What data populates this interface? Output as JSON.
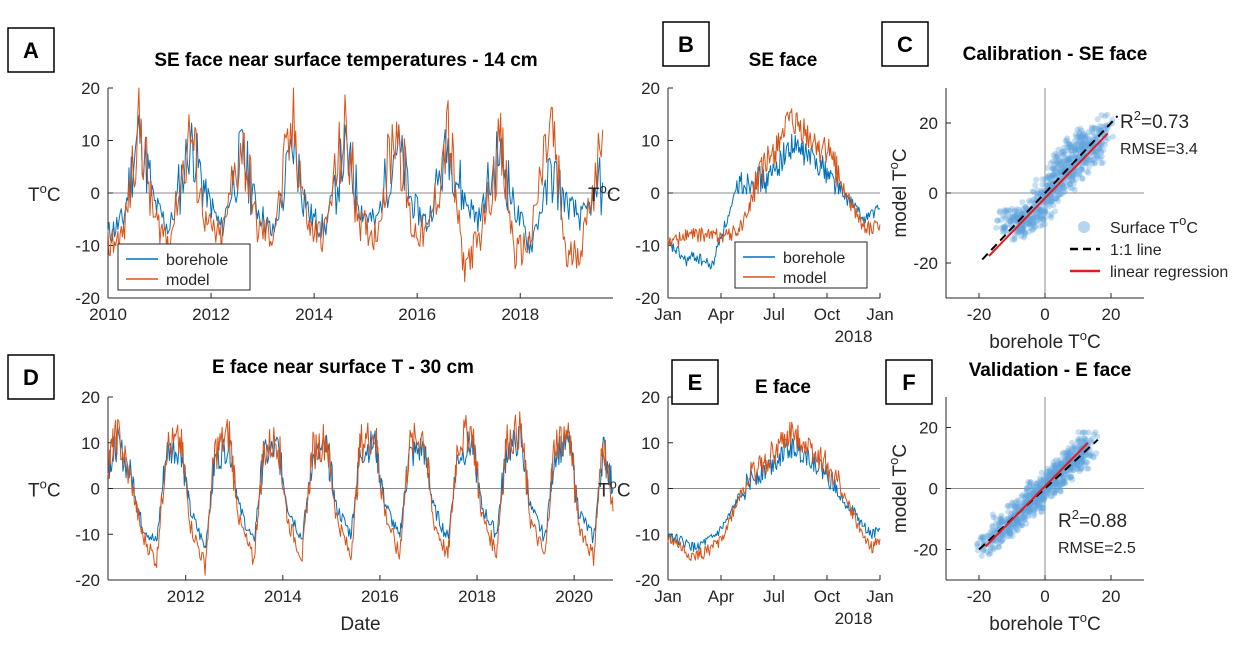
{
  "colors": {
    "borehole": "#0072BD",
    "model": "#D95319",
    "regression": "#E41A1C",
    "one_to_one": "#000000",
    "scatter": "#5FA2DD"
  },
  "panels": [
    {
      "letter": "A",
      "title": "SE face near surface temperatures - 14 cm"
    },
    {
      "letter": "B",
      "title": "SE face"
    },
    {
      "letter": "C",
      "title": "Calibration - SE face"
    },
    {
      "letter": "D",
      "title": "E face near surface T - 30 cm"
    },
    {
      "letter": "E",
      "title": "E face"
    },
    {
      "letter": "F",
      "title": "Validation - E face"
    }
  ],
  "chart_data": [
    {
      "id": "A",
      "type": "line",
      "title": "SE face near surface temperatures - 14 cm",
      "xlabel": "",
      "ylabel": "T°C",
      "xlim": [
        2010,
        2019.8
      ],
      "ylim": [
        -20,
        20
      ],
      "xticks": [
        "2010",
        "2012",
        "2014",
        "2016",
        "2018"
      ],
      "yticks": [
        "20",
        "10",
        "0",
        "-10",
        "-20"
      ],
      "legend": {
        "position": "bottom-left",
        "entries": [
          "borehole",
          "model"
        ]
      },
      "series": [
        {
          "name": "borehole",
          "x": [
            2010.0,
            2010.3,
            2010.6,
            2010.9,
            2011.2,
            2011.6,
            2011.9,
            2012.2,
            2012.6,
            2012.9,
            2013.2,
            2013.6,
            2013.9,
            2014.2,
            2014.6,
            2014.9,
            2015.2,
            2015.6,
            2015.9,
            2016.2,
            2016.6,
            2016.9,
            2017.2,
            2017.6,
            2017.9,
            2018.2,
            2018.6,
            2018.9,
            2019.2,
            2019.6
          ],
          "values": [
            -8,
            -5,
            12,
            -2,
            -7,
            10,
            0,
            -7,
            8,
            -3,
            -8,
            9,
            -4,
            -7,
            8,
            -3,
            -6,
            10,
            -2,
            -6,
            9,
            -1,
            -5,
            8,
            -3,
            -10,
            4,
            -2,
            -5,
            2
          ]
        },
        {
          "name": "model",
          "x": [
            2010.0,
            2010.3,
            2010.6,
            2010.9,
            2011.2,
            2011.6,
            2011.9,
            2012.2,
            2012.6,
            2012.9,
            2013.2,
            2013.6,
            2013.9,
            2014.2,
            2014.6,
            2014.9,
            2015.2,
            2015.6,
            2015.9,
            2016.2,
            2016.6,
            2016.9,
            2017.2,
            2017.6,
            2017.9,
            2018.2,
            2018.6,
            2018.9,
            2019.2,
            2019.6
          ],
          "values": [
            -10,
            -8,
            14,
            -5,
            -9,
            12,
            -6,
            -9,
            10,
            -7,
            -8,
            13,
            -7,
            -8,
            12,
            -6,
            -8,
            14,
            -7,
            -8,
            12,
            -14,
            -9,
            10,
            -12,
            -9,
            14,
            -13,
            -10,
            12
          ]
        }
      ]
    },
    {
      "id": "B",
      "type": "line",
      "title": "SE face",
      "xlabel": "2018",
      "ylabel": "T°C",
      "xlim": [
        0,
        12
      ],
      "ylim": [
        -20,
        20
      ],
      "xticks": [
        "Jan",
        "Apr",
        "Jul",
        "Oct",
        "Jan"
      ],
      "yticks": [
        "20",
        "10",
        "0",
        "-10",
        "-20"
      ],
      "legend": {
        "position": "bottom-right",
        "entries": [
          "borehole",
          "model"
        ]
      },
      "series": [
        {
          "name": "borehole",
          "x": [
            0,
            0.5,
            1,
            1.5,
            2,
            2.5,
            3,
            3.5,
            4,
            4.5,
            5,
            5.5,
            6,
            6.5,
            7,
            7.5,
            8,
            8.5,
            9,
            9.5,
            10,
            10.5,
            11,
            11.5,
            12
          ],
          "values": [
            -10,
            -11,
            -13,
            -12,
            -13,
            -14,
            -8,
            -4,
            2,
            2,
            3,
            2,
            4,
            7,
            9,
            8,
            7,
            6,
            4,
            2,
            -1,
            -2,
            -5,
            -4,
            -3
          ]
        },
        {
          "name": "model",
          "x": [
            0,
            0.5,
            1,
            1.5,
            2,
            2.5,
            3,
            3.5,
            4,
            4.5,
            5,
            5.5,
            6,
            6.5,
            7,
            7.5,
            8,
            8.5,
            9,
            9.5,
            10,
            10.5,
            11,
            11.5,
            12
          ],
          "values": [
            -9,
            -9,
            -8,
            -8,
            -8,
            -8,
            -8,
            -8,
            -7,
            -4,
            2,
            5,
            8,
            12,
            13,
            12,
            10,
            9,
            8,
            5,
            0,
            -3,
            -6,
            -7,
            -6
          ]
        }
      ]
    },
    {
      "id": "C",
      "type": "scatter",
      "title": "Calibration - SE face",
      "xlabel": "borehole T°C",
      "ylabel": "model T°C",
      "xlim": [
        -30,
        30
      ],
      "ylim": [
        -30,
        30
      ],
      "xticks": [
        "-20",
        "0",
        "20"
      ],
      "yticks": [
        "20",
        "0",
        "-20"
      ],
      "legend": {
        "position": "bottom-right",
        "entries": [
          "Surface T°C",
          "1:1 line",
          "linear regression"
        ]
      },
      "annotations": [
        "R²=0.73",
        "RMSE=3.4"
      ],
      "r2": 0.73,
      "rmse": 3.4,
      "regression": {
        "x": [
          -17,
          19
        ],
        "y": [
          -18,
          17
        ]
      },
      "one_to_one": {
        "x": [
          -19,
          22
        ],
        "y": [
          -19,
          22
        ]
      },
      "points": {
        "x": [
          -12,
          -10,
          -8,
          -6,
          -5,
          -3,
          -2,
          0,
          1,
          2,
          3,
          4,
          5,
          6,
          7,
          8,
          9,
          10,
          11,
          12,
          13,
          14,
          15,
          16,
          18,
          -9,
          -7,
          -4,
          0,
          3,
          6,
          9,
          12
        ],
        "y": [
          -8,
          -8,
          -9,
          -7,
          -8,
          -6,
          -3,
          -2,
          -5,
          0,
          2,
          5,
          8,
          3,
          6,
          10,
          7,
          12,
          9,
          14,
          11,
          16,
          12,
          15,
          19,
          -10,
          -8,
          -5,
          1,
          4,
          9,
          13,
          16
        ]
      }
    },
    {
      "id": "D",
      "type": "line",
      "title": "E face near surface T - 30 cm",
      "xlabel": "Date",
      "ylabel": "T°C",
      "xlim": [
        2010.4,
        2020.8
      ],
      "ylim": [
        -20,
        20
      ],
      "xticks": [
        "2012",
        "2014",
        "2016",
        "2018",
        "2020"
      ],
      "yticks": [
        "20",
        "10",
        "0",
        "-10",
        "-20"
      ],
      "series": [
        {
          "name": "borehole",
          "x": [
            2010.4,
            2010.6,
            2010.9,
            2011.1,
            2011.4,
            2011.6,
            2011.9,
            2012.1,
            2012.4,
            2012.6,
            2012.9,
            2013.1,
            2013.4,
            2013.6,
            2013.9,
            2014.1,
            2014.4,
            2014.6,
            2014.9,
            2015.1,
            2015.4,
            2015.6,
            2015.9,
            2016.1,
            2016.4,
            2016.6,
            2016.9,
            2017.1,
            2017.4,
            2017.6,
            2017.9,
            2018.1,
            2018.4,
            2018.6,
            2018.9,
            2019.1,
            2019.4,
            2019.6,
            2019.9,
            2020.1,
            2020.4,
            2020.6,
            2020.8
          ],
          "values": [
            5,
            10,
            2,
            -8,
            -12,
            8,
            9,
            -5,
            -13,
            6,
            10,
            -4,
            -12,
            7,
            9,
            -4,
            -11,
            6,
            9,
            -4,
            -10,
            8,
            10,
            -3,
            -11,
            7,
            9,
            -4,
            -11,
            7,
            10,
            -4,
            -10,
            8,
            11,
            -4,
            -11,
            8,
            10,
            -5,
            -11,
            9,
            0
          ]
        },
        {
          "name": "model",
          "x": [
            2010.4,
            2010.6,
            2010.9,
            2011.1,
            2011.4,
            2011.6,
            2011.9,
            2012.1,
            2012.4,
            2012.6,
            2012.9,
            2013.1,
            2013.4,
            2013.6,
            2013.9,
            2014.1,
            2014.4,
            2014.6,
            2014.9,
            2015.1,
            2015.4,
            2015.6,
            2015.9,
            2016.1,
            2016.4,
            2016.6,
            2016.9,
            2017.1,
            2017.4,
            2017.6,
            2017.9,
            2018.1,
            2018.4,
            2018.6,
            2018.9,
            2019.1,
            2019.4,
            2019.6,
            2019.9,
            2020.1,
            2020.4,
            2020.6,
            2020.8
          ],
          "values": [
            6,
            12,
            0,
            -10,
            -16,
            9,
            10,
            -8,
            -17,
            8,
            12,
            -7,
            -16,
            8,
            11,
            -7,
            -15,
            8,
            11,
            -6,
            -15,
            10,
            12,
            -5,
            -15,
            9,
            12,
            -7,
            -15,
            10,
            13,
            -6,
            -14,
            10,
            13,
            -7,
            -15,
            10,
            12,
            -8,
            -15,
            11,
            -5
          ]
        }
      ]
    },
    {
      "id": "E",
      "type": "line",
      "title": "E face",
      "xlabel": "2018",
      "ylabel": "T°C",
      "xlim": [
        0,
        12
      ],
      "ylim": [
        -20,
        20
      ],
      "xticks": [
        "Jan",
        "Apr",
        "Jul",
        "Oct",
        "Jan"
      ],
      "yticks": [
        "20",
        "10",
        "0",
        "-10",
        "-20"
      ],
      "series": [
        {
          "name": "borehole",
          "x": [
            0,
            0.5,
            1,
            1.5,
            2,
            2.5,
            3,
            3.5,
            4,
            4.5,
            5,
            5.5,
            6,
            6.5,
            7,
            7.5,
            8,
            8.5,
            9,
            9.5,
            10,
            10.5,
            11,
            11.5,
            12
          ],
          "values": [
            -10,
            -11,
            -12,
            -13,
            -12,
            -11,
            -9,
            -6,
            -2,
            1,
            3,
            4,
            6,
            8,
            9,
            8,
            7,
            5,
            3,
            0,
            -3,
            -5,
            -8,
            -10,
            -9
          ]
        },
        {
          "name": "model",
          "x": [
            0,
            0.5,
            1,
            1.5,
            2,
            2.5,
            3,
            3.5,
            4,
            4.5,
            5,
            5.5,
            6,
            6.5,
            7,
            7.5,
            8,
            8.5,
            9,
            9.5,
            10,
            10.5,
            11,
            11.5,
            12
          ],
          "values": [
            -11,
            -12,
            -14,
            -15,
            -14,
            -13,
            -11,
            -7,
            -2,
            2,
            4,
            6,
            8,
            10,
            12,
            11,
            9,
            7,
            5,
            2,
            -2,
            -6,
            -10,
            -13,
            -11
          ]
        }
      ]
    },
    {
      "id": "F",
      "type": "scatter",
      "title": "Validation - E face",
      "xlabel": "borehole T°C",
      "ylabel": "model T°C",
      "xlim": [
        -30,
        30
      ],
      "ylim": [
        -30,
        30
      ],
      "xticks": [
        "-20",
        "0",
        "20"
      ],
      "yticks": [
        "20",
        "0",
        "-20"
      ],
      "annotations": [
        "R²=0.88",
        "RMSE=2.5"
      ],
      "r2": 0.88,
      "rmse": 2.5,
      "regression": {
        "x": [
          -18,
          13
        ],
        "y": [
          -19,
          15
        ]
      },
      "one_to_one": {
        "x": [
          -20,
          16
        ],
        "y": [
          -20,
          16
        ]
      },
      "points": {
        "x": [
          -18,
          -16,
          -14,
          -12,
          -10,
          -9,
          -8,
          -7,
          -6,
          -5,
          -4,
          -3,
          -2,
          -1,
          0,
          1,
          2,
          3,
          4,
          5,
          6,
          7,
          8,
          9,
          10,
          11,
          12,
          13,
          -13,
          -11,
          -6,
          -3,
          2,
          5,
          8,
          11
        ],
        "y": [
          -19,
          -17,
          -15,
          -14,
          -11,
          -9,
          -10,
          -7,
          -7,
          -5,
          -5,
          -3,
          -2,
          -1,
          0,
          1,
          2,
          4,
          4,
          6,
          6,
          8,
          9,
          10,
          11,
          12,
          13,
          15,
          -12,
          -12,
          -4,
          -1,
          3,
          5,
          9,
          10
        ]
      }
    }
  ]
}
